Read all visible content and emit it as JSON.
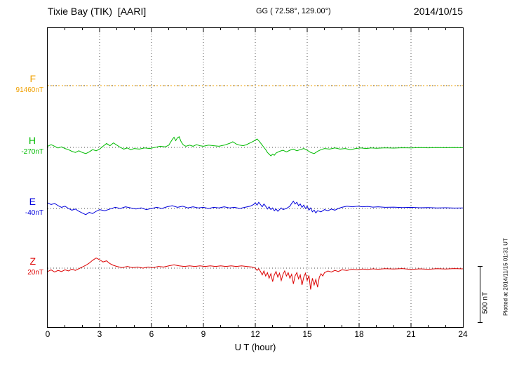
{
  "header": {
    "station": "Tixie Bay (TIK)  [AARI]",
    "coords": "GG ( 72.58°, 129.00°)",
    "date": "2014/10/15"
  },
  "axis": {
    "xlabel": "U T (hour)",
    "ticks": [
      0,
      3,
      6,
      9,
      12,
      15,
      18,
      21,
      24
    ]
  },
  "scale_bar": {
    "label": "500 nT",
    "nT": 500
  },
  "footer": {
    "plotted_at": "Plotted at 2014/11/15 01:31 UT"
  },
  "chart_data": {
    "type": "line",
    "title": "Tixie Bay (TIK) [AARI] magnetogram 2014/10/15",
    "xlabel": "U T (hour)",
    "x_range": [
      0,
      24
    ],
    "x_ticks": [
      0,
      3,
      6,
      9,
      12,
      15,
      18,
      21,
      24
    ],
    "grid": "dotted vertical every 3 hours, dotted horizontal baseline per component",
    "legend_position": "left margin component labels",
    "scale_bar_nT": 500,
    "series": [
      {
        "name": "F",
        "color": "#f0a000",
        "baseline_label": "91460nT",
        "baseline_nT": 91460,
        "line_style": "dotted",
        "x": [
          0,
          24
        ],
        "offsets_nT": [
          0,
          0
        ]
      },
      {
        "name": "H",
        "color": "#00bb00",
        "baseline_label": "-270nT",
        "baseline_nT": -270,
        "line_style": "solid",
        "x": [
          0.0,
          0.2,
          0.4,
          0.6,
          0.8,
          1.0,
          1.2,
          1.4,
          1.6,
          1.8,
          2.0,
          2.2,
          2.4,
          2.6,
          2.8,
          3.0,
          3.2,
          3.4,
          3.6,
          3.8,
          4.0,
          4.2,
          4.4,
          4.6,
          4.8,
          5.0,
          5.3,
          5.6,
          5.9,
          6.2,
          6.5,
          6.8,
          7.0,
          7.1,
          7.2,
          7.3,
          7.4,
          7.5,
          7.6,
          7.7,
          7.8,
          7.9,
          8.0,
          8.2,
          8.4,
          8.6,
          8.8,
          9.0,
          9.3,
          9.6,
          9.9,
          10.2,
          10.5,
          10.7,
          10.9,
          11.1,
          11.3,
          11.5,
          11.7,
          11.9,
          12.0,
          12.1,
          12.2,
          12.3,
          12.4,
          12.5,
          12.6,
          12.7,
          12.8,
          12.9,
          13.0,
          13.1,
          13.2,
          13.4,
          13.6,
          13.8,
          14.0,
          14.2,
          14.4,
          14.6,
          14.8,
          15.0,
          15.2,
          15.4,
          15.6,
          15.8,
          16.0,
          16.3,
          16.6,
          16.9,
          17.2,
          17.5,
          17.8,
          18.1,
          18.4,
          18.7,
          19.0,
          19.5,
          20.0,
          20.5,
          21.0,
          21.5,
          22.0,
          22.5,
          23.0,
          23.5,
          24.0
        ],
        "offsets_nT": [
          10,
          25,
          10,
          -5,
          5,
          -10,
          -20,
          -35,
          -45,
          -30,
          -45,
          -55,
          -40,
          -20,
          -30,
          -15,
          10,
          35,
          15,
          40,
          20,
          0,
          -15,
          -5,
          -20,
          -10,
          -15,
          -5,
          -10,
          0,
          10,
          5,
          20,
          45,
          70,
          90,
          60,
          85,
          95,
          55,
          30,
          15,
          10,
          20,
          10,
          25,
          15,
          10,
          20,
          15,
          10,
          20,
          35,
          50,
          30,
          20,
          15,
          25,
          40,
          55,
          65,
          75,
          60,
          40,
          20,
          0,
          -20,
          -45,
          -60,
          -75,
          -60,
          -70,
          -50,
          -35,
          -25,
          -40,
          -25,
          -15,
          -30,
          -20,
          -10,
          -25,
          -45,
          -55,
          -35,
          -20,
          -10,
          -15,
          -5,
          -15,
          -10,
          -20,
          -10,
          -5,
          -10,
          -5,
          -8,
          -4,
          -6,
          -3,
          -5,
          -2,
          -4,
          -2,
          -3,
          -2,
          -3
        ]
      },
      {
        "name": "E",
        "color": "#0000dd",
        "baseline_label": "-40nT",
        "baseline_nT": -40,
        "line_style": "solid",
        "x": [
          0.0,
          0.2,
          0.4,
          0.6,
          0.8,
          1.0,
          1.2,
          1.4,
          1.6,
          1.8,
          2.0,
          2.2,
          2.4,
          2.6,
          2.8,
          3.0,
          3.3,
          3.6,
          3.9,
          4.2,
          4.5,
          4.8,
          5.1,
          5.4,
          5.7,
          6.0,
          6.3,
          6.6,
          6.9,
          7.2,
          7.5,
          7.8,
          8.1,
          8.4,
          8.7,
          9.0,
          9.3,
          9.6,
          9.9,
          10.2,
          10.5,
          10.8,
          11.1,
          11.4,
          11.7,
          11.9,
          12.0,
          12.1,
          12.2,
          12.3,
          12.4,
          12.5,
          12.6,
          12.7,
          12.8,
          12.9,
          13.0,
          13.1,
          13.2,
          13.3,
          13.4,
          13.5,
          13.6,
          13.8,
          14.0,
          14.1,
          14.2,
          14.3,
          14.4,
          14.5,
          14.6,
          14.7,
          14.8,
          14.9,
          15.0,
          15.1,
          15.2,
          15.3,
          15.4,
          15.5,
          15.6,
          15.8,
          16.0,
          16.2,
          16.4,
          16.6,
          16.8,
          17.0,
          17.3,
          17.6,
          17.9,
          18.2,
          18.5,
          18.8,
          19.1,
          19.5,
          20.0,
          20.5,
          21.0,
          21.5,
          22.0,
          22.5,
          23.0,
          23.5,
          24.0
        ],
        "offsets_nT": [
          50,
          35,
          45,
          25,
          10,
          20,
          0,
          -15,
          -5,
          -25,
          -40,
          -55,
          -35,
          -45,
          -25,
          -10,
          -20,
          -5,
          10,
          0,
          15,
          5,
          -5,
          5,
          -10,
          0,
          10,
          0,
          15,
          25,
          10,
          20,
          5,
          15,
          5,
          10,
          0,
          10,
          5,
          15,
          5,
          10,
          0,
          10,
          20,
          35,
          50,
          30,
          55,
          35,
          15,
          40,
          20,
          -5,
          15,
          -10,
          5,
          -20,
          -5,
          -25,
          -10,
          5,
          -10,
          0,
          20,
          45,
          65,
          40,
          55,
          25,
          40,
          10,
          30,
          0,
          20,
          -15,
          5,
          -30,
          -15,
          -40,
          -20,
          -30,
          -10,
          -20,
          -5,
          -15,
          0,
          10,
          20,
          15,
          20,
          15,
          18,
          12,
          15,
          10,
          12,
          8,
          10,
          6,
          8,
          5,
          6,
          4,
          5
        ]
      },
      {
        "name": "Z",
        "color": "#dd0000",
        "baseline_label": "20nT",
        "baseline_nT": 20,
        "line_style": "solid",
        "x": [
          0.0,
          0.2,
          0.4,
          0.6,
          0.8,
          1.0,
          1.2,
          1.4,
          1.6,
          1.8,
          2.0,
          2.2,
          2.4,
          2.6,
          2.8,
          3.0,
          3.2,
          3.4,
          3.6,
          3.8,
          4.0,
          4.3,
          4.6,
          4.9,
          5.2,
          5.5,
          5.8,
          6.1,
          6.4,
          6.7,
          7.0,
          7.3,
          7.6,
          7.9,
          8.2,
          8.5,
          8.8,
          9.1,
          9.4,
          9.7,
          10.0,
          10.3,
          10.6,
          10.9,
          11.2,
          11.5,
          11.8,
          12.0,
          12.1,
          12.2,
          12.3,
          12.4,
          12.5,
          12.6,
          12.7,
          12.8,
          12.9,
          13.0,
          13.1,
          13.2,
          13.3,
          13.4,
          13.5,
          13.6,
          13.7,
          13.8,
          13.9,
          14.0,
          14.1,
          14.2,
          14.3,
          14.4,
          14.5,
          14.6,
          14.7,
          14.8,
          14.9,
          15.0,
          15.1,
          15.2,
          15.3,
          15.4,
          15.5,
          15.6,
          15.7,
          15.8,
          15.9,
          16.0,
          16.2,
          16.4,
          16.6,
          16.8,
          17.0,
          17.3,
          17.6,
          17.9,
          18.2,
          18.5,
          18.8,
          19.1,
          19.5,
          20.0,
          20.5,
          21.0,
          21.5,
          22.0,
          22.5,
          23.0,
          23.5,
          24.0
        ],
        "offsets_nT": [
          -30,
          -15,
          -35,
          -20,
          -30,
          -15,
          -25,
          -10,
          -20,
          -5,
          10,
          25,
          45,
          70,
          90,
          75,
          55,
          65,
          40,
          25,
          15,
          5,
          15,
          5,
          10,
          0,
          10,
          5,
          15,
          10,
          20,
          30,
          20,
          15,
          20,
          15,
          20,
          15,
          20,
          15,
          20,
          15,
          20,
          15,
          20,
          15,
          10,
          0,
          -20,
          -5,
          -30,
          -60,
          -25,
          -70,
          -40,
          -90,
          -50,
          -120,
          -60,
          -30,
          -80,
          -45,
          -110,
          -55,
          -25,
          -70,
          -40,
          -90,
          -55,
          -140,
          -70,
          -40,
          -95,
          -60,
          -150,
          -80,
          -45,
          -110,
          -65,
          -190,
          -90,
          -150,
          -100,
          -170,
          -80,
          -50,
          -70,
          -40,
          -25,
          -35,
          -20,
          -30,
          -15,
          -20,
          -10,
          -15,
          -8,
          -12,
          -6,
          -10,
          -5,
          -8,
          -4,
          -12,
          -6,
          -10,
          -5,
          -8,
          -4,
          -6
        ]
      }
    ]
  }
}
